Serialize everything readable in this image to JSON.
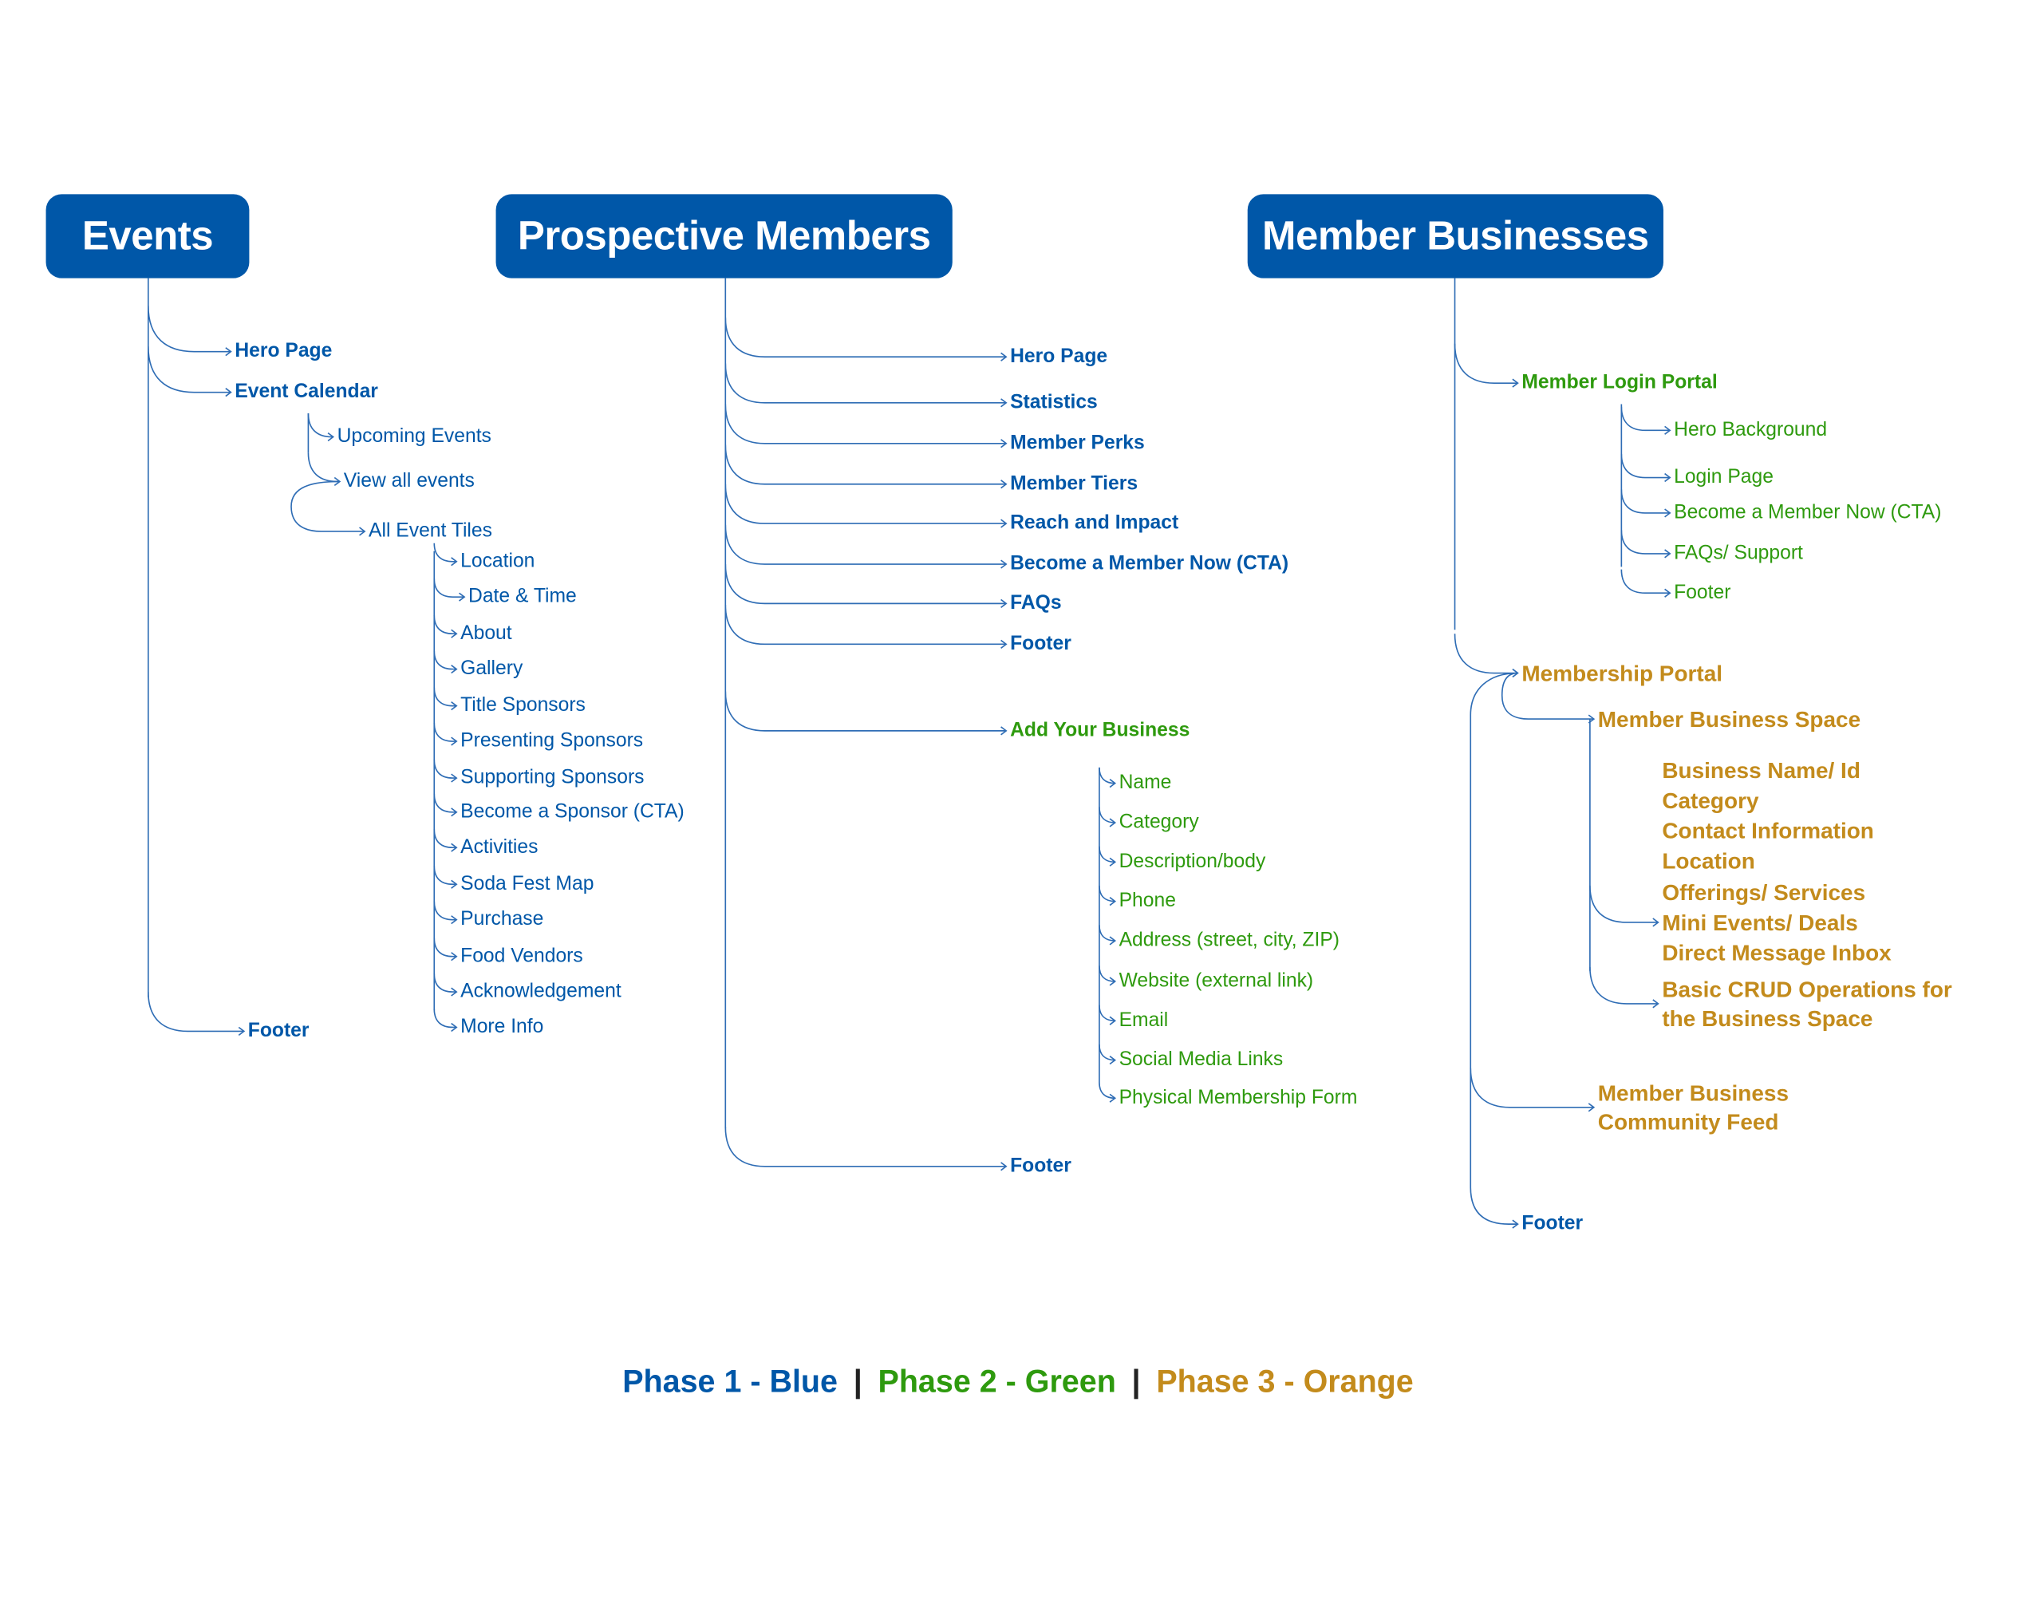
{
  "colors": {
    "phase1": "#0057A8",
    "phase2": "#2E9A0E",
    "phase3": "#C38B1C"
  },
  "events": {
    "title": "Events",
    "hero": "Hero Page",
    "calendar": "Event Calendar",
    "upcoming": "Upcoming Events",
    "view_all": "View all events",
    "all_tiles": "All Event Tiles",
    "tiles": [
      "Location",
      "Date & Time",
      "About",
      "Gallery",
      "Title Sponsors",
      "Presenting Sponsors",
      "Supporting Sponsors",
      "Become a Sponsor (CTA)",
      "Activities",
      "Soda Fest Map",
      "Purchase",
      "Food Vendors",
      "Acknowledgement",
      "More Info"
    ],
    "footer": "Footer"
  },
  "prospective": {
    "title": "Prospective Members",
    "items": [
      "Hero Page",
      "Statistics",
      "Member Perks",
      "Member Tiers",
      "Reach and Impact",
      "Become a Member Now (CTA)",
      "FAQs",
      "Footer"
    ],
    "add_business": "Add Your Business",
    "business_fields": [
      "Name",
      "Category",
      "Description/body",
      "Phone",
      "Address (street, city, ZIP)",
      "Website (external link)",
      "Email",
      "Social Media Links",
      "Physical Membership Form"
    ],
    "footer": "Footer"
  },
  "member_businesses": {
    "title": "Member Businesses",
    "login_portal": "Member Login Portal",
    "login_items": [
      "Hero Background",
      "Login Page",
      "Become a Member Now (CTA)",
      "FAQs/ Support",
      "Footer"
    ],
    "membership_portal": "Membership Portal",
    "business_space": "Member Business Space",
    "space_items": [
      "Business Name/ Id",
      "Category",
      "Contact Information",
      "Location",
      "Offerings/ Services",
      "Mini Events/ Deals",
      "Direct Message Inbox",
      "Basic CRUD Operations for",
      "the Business Space"
    ],
    "community_feed": [
      "Member Business",
      "Community Feed"
    ],
    "footer": "Footer"
  },
  "legend": {
    "phase1": "Phase 1 - Blue",
    "phase2": "Phase 2 - Green",
    "phase3": "Phase 3 - Orange",
    "separator": "|"
  }
}
